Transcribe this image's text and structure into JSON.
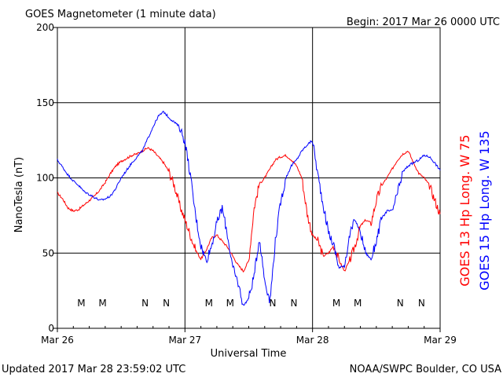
{
  "header": {
    "title": "GOES Magnetometer (1 minute data)",
    "begin": "Begin:  2017 Mar 26 0000 UTC"
  },
  "footer": {
    "updated": "Updated 2017 Mar 28 23:59:02 UTC",
    "credit": "NOAA/SWPC Boulder, CO USA"
  },
  "colors": {
    "goes13": "#ff0000",
    "goes15": "#0000ff",
    "axis": "#000000"
  },
  "chart_data": {
    "type": "line",
    "xlabel": "Universal Time",
    "ylabel": "NanoTesla (nT)",
    "ylim": [
      0,
      200
    ],
    "yticks": [
      "0",
      "50",
      "100",
      "150",
      "200"
    ],
    "x_range_hours": [
      0,
      72
    ],
    "x_ticks": [
      {
        "hour": 0,
        "label": "Mar 26"
      },
      {
        "hour": 24,
        "label": "Mar 27"
      },
      {
        "hour": 48,
        "label": "Mar 28"
      },
      {
        "hour": 72,
        "label": "Mar 29"
      }
    ],
    "grid": true,
    "series": [
      {
        "name": "GOES 13 Hp  Long. W 75",
        "color": "#ff0000",
        "points": [
          [
            0,
            90
          ],
          [
            1,
            86
          ],
          [
            2,
            80
          ],
          [
            3,
            78
          ],
          [
            4,
            79
          ],
          [
            5,
            82
          ],
          [
            6,
            85
          ],
          [
            7,
            88
          ],
          [
            8,
            92
          ],
          [
            9,
            97
          ],
          [
            10,
            103
          ],
          [
            11,
            108
          ],
          [
            12,
            111
          ],
          [
            13,
            113
          ],
          [
            14,
            115
          ],
          [
            15,
            116
          ],
          [
            16,
            118
          ],
          [
            17,
            120
          ],
          [
            18,
            118
          ],
          [
            19,
            114
          ],
          [
            20,
            110
          ],
          [
            21,
            104
          ],
          [
            22,
            95
          ],
          [
            23,
            82
          ],
          [
            24,
            72
          ],
          [
            25,
            62
          ],
          [
            26,
            52
          ],
          [
            27,
            46
          ],
          [
            28,
            52
          ],
          [
            29,
            60
          ],
          [
            30,
            62
          ],
          [
            31,
            58
          ],
          [
            32,
            54
          ],
          [
            33,
            48
          ],
          [
            34,
            42
          ],
          [
            35,
            38
          ],
          [
            36,
            45
          ],
          [
            37,
            80
          ],
          [
            38,
            96
          ],
          [
            39,
            100
          ],
          [
            40,
            106
          ],
          [
            41,
            112
          ],
          [
            42,
            114
          ],
          [
            43,
            115
          ],
          [
            44,
            112
          ],
          [
            45,
            108
          ],
          [
            46,
            100
          ],
          [
            47,
            76
          ],
          [
            48,
            62
          ],
          [
            49,
            58
          ],
          [
            50,
            48
          ],
          [
            51,
            50
          ],
          [
            52,
            55
          ],
          [
            53,
            45
          ],
          [
            54,
            38
          ],
          [
            55,
            45
          ],
          [
            56,
            55
          ],
          [
            57,
            68
          ],
          [
            58,
            72
          ],
          [
            59,
            70
          ],
          [
            60,
            85
          ],
          [
            61,
            95
          ],
          [
            62,
            100
          ],
          [
            63,
            106
          ],
          [
            64,
            112
          ],
          [
            65,
            116
          ],
          [
            66,
            118
          ],
          [
            67,
            110
          ],
          [
            68,
            103
          ],
          [
            69,
            100
          ],
          [
            70,
            95
          ],
          [
            71,
            85
          ],
          [
            72,
            76
          ]
        ],
        "markers": [
          {
            "hour": 4.5,
            "label": "M"
          },
          {
            "hour": 16.5,
            "label": "N"
          },
          {
            "hour": 28.5,
            "label": "M"
          },
          {
            "hour": 40.5,
            "label": "N"
          },
          {
            "hour": 52.5,
            "label": "M"
          },
          {
            "hour": 64.5,
            "label": "N"
          }
        ]
      },
      {
        "name": "GOES 15 Hp  Long. W 135",
        "color": "#0000ff",
        "points": [
          [
            0,
            112
          ],
          [
            1,
            107
          ],
          [
            2,
            102
          ],
          [
            3,
            98
          ],
          [
            4,
            95
          ],
          [
            5,
            91
          ],
          [
            6,
            89
          ],
          [
            7,
            87
          ],
          [
            8,
            85
          ],
          [
            9,
            86
          ],
          [
            10,
            88
          ],
          [
            11,
            93
          ],
          [
            12,
            100
          ],
          [
            13,
            105
          ],
          [
            14,
            110
          ],
          [
            15,
            114
          ],
          [
            16,
            118
          ],
          [
            17,
            126
          ],
          [
            18,
            134
          ],
          [
            19,
            141
          ],
          [
            20,
            144
          ],
          [
            21,
            140
          ],
          [
            22,
            137
          ],
          [
            23,
            134
          ],
          [
            24,
            124
          ],
          [
            25,
            102
          ],
          [
            26,
            75
          ],
          [
            27,
            55
          ],
          [
            28,
            45
          ],
          [
            29,
            55
          ],
          [
            30,
            70
          ],
          [
            31,
            80
          ],
          [
            32,
            62
          ],
          [
            33,
            40
          ],
          [
            34,
            30
          ],
          [
            35,
            15
          ],
          [
            36,
            20
          ],
          [
            37,
            35
          ],
          [
            38,
            60
          ],
          [
            39,
            32
          ],
          [
            40,
            18
          ],
          [
            41,
            58
          ],
          [
            42,
            84
          ],
          [
            43,
            100
          ],
          [
            44,
            108
          ],
          [
            45,
            112
          ],
          [
            46,
            118
          ],
          [
            47,
            122
          ],
          [
            48,
            125
          ],
          [
            49,
            102
          ],
          [
            50,
            82
          ],
          [
            51,
            64
          ],
          [
            52,
            55
          ],
          [
            53,
            40
          ],
          [
            54,
            42
          ],
          [
            55,
            62
          ],
          [
            56,
            72
          ],
          [
            57,
            64
          ],
          [
            58,
            50
          ],
          [
            59,
            46
          ],
          [
            60,
            58
          ],
          [
            61,
            73
          ],
          [
            62,
            78
          ],
          [
            63,
            78
          ],
          [
            64,
            90
          ],
          [
            65,
            104
          ],
          [
            66,
            108
          ],
          [
            67,
            110
          ],
          [
            68,
            112
          ],
          [
            69,
            115
          ],
          [
            70,
            114
          ],
          [
            71,
            110
          ],
          [
            72,
            105
          ]
        ],
        "markers": [
          {
            "hour": 8.5,
            "label": "M"
          },
          {
            "hour": 20.5,
            "label": "N"
          },
          {
            "hour": 32.5,
            "label": "M"
          },
          {
            "hour": 44.5,
            "label": "N"
          },
          {
            "hour": 56.5,
            "label": "M"
          },
          {
            "hour": 68.5,
            "label": "N"
          }
        ]
      }
    ]
  }
}
